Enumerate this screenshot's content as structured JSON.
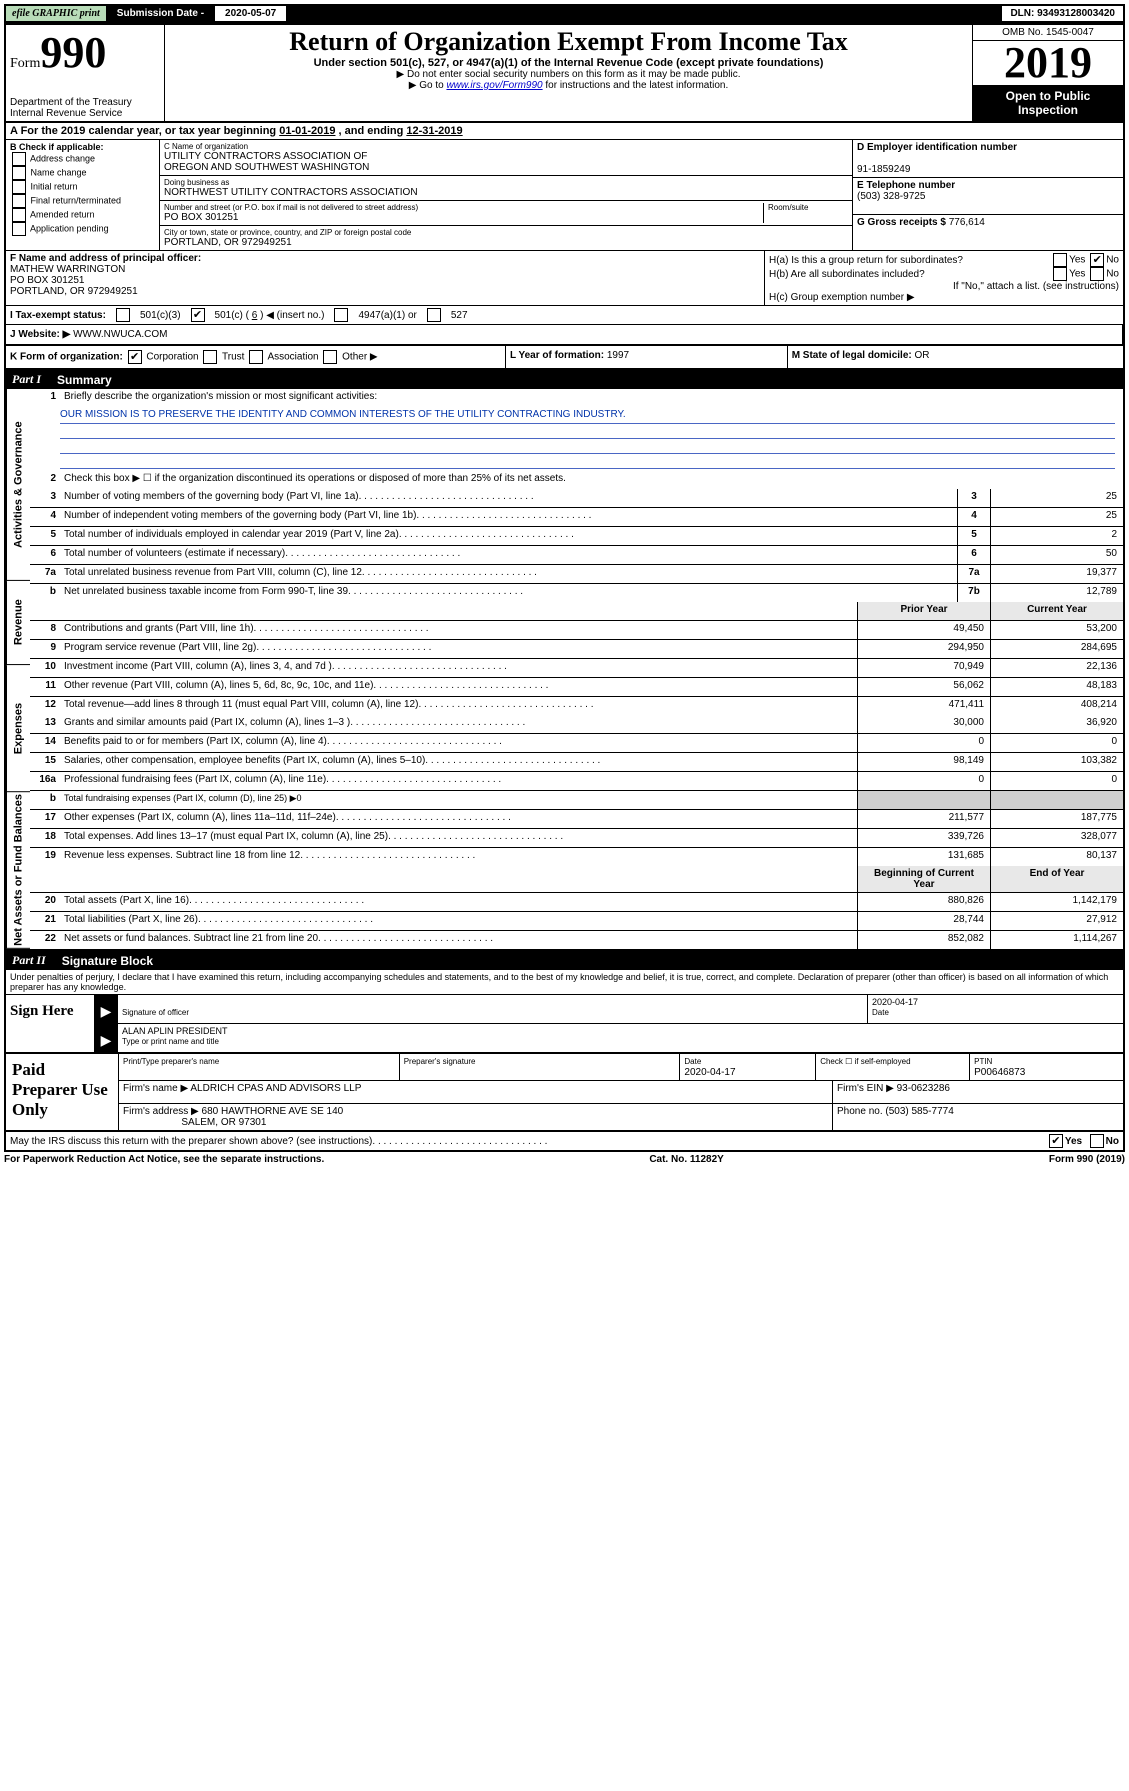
{
  "topbar": {
    "efile": "efile GRAPHIC print",
    "sub_label": "Submission Date - ",
    "sub_date": "2020-05-07",
    "dln_label": "DLN: ",
    "dln": "93493128003420"
  },
  "header": {
    "form_prefix": "Form",
    "form_number": "990",
    "dept": "Department of the Treasury",
    "irs": "Internal Revenue Service",
    "title": "Return of Organization Exempt From Income Tax",
    "subtitle": "Under section 501(c), 527, or 4947(a)(1) of the Internal Revenue Code (except private foundations)",
    "note1": "▶ Do not enter social security numbers on this form as it may be made public.",
    "note2_pre": "▶ Go to ",
    "note2_link": "www.irs.gov/Form990",
    "note2_post": " for instructions and the latest information.",
    "omb": "OMB No. 1545-0047",
    "year": "2019",
    "open": "Open to Public Inspection"
  },
  "A": {
    "text": "A For the 2019 calendar year, or tax year beginning ",
    "begin": "01-01-2019",
    "mid": " , and ending ",
    "end": "12-31-2019"
  },
  "B": {
    "label": "B Check if applicable:",
    "opts": [
      "Address change",
      "Name change",
      "Initial return",
      "Final return/terminated",
      "Amended return",
      "Application pending"
    ]
  },
  "C": {
    "name_label": "C Name of organization",
    "name1": "UTILITY CONTRACTORS ASSOCIATION OF",
    "name2": "OREGON AND SOUTHWEST WASHINGTON",
    "dba_label": "Doing business as",
    "dba": "NORTHWEST UTILITY CONTRACTORS ASSOCIATION",
    "addr_label": "Number and street (or P.O. box if mail is not delivered to street address)",
    "room_label": "Room/suite",
    "addr": "PO BOX 301251",
    "city_label": "City or town, state or province, country, and ZIP or foreign postal code",
    "city": "PORTLAND, OR  972949251"
  },
  "D": {
    "label": "D Employer identification number",
    "val": "91-1859249"
  },
  "E": {
    "label": "E Telephone number",
    "val": "(503) 328-9725"
  },
  "G": {
    "label": "G Gross receipts $ ",
    "val": "776,614"
  },
  "F": {
    "label": "F Name and address of principal officer:",
    "name": "MATHEW WARRINGTON",
    "addr1": "PO BOX 301251",
    "addr2": "PORTLAND, OR  972949251"
  },
  "H": {
    "a": "H(a)  Is this a group return for subordinates?",
    "b": "H(b)  Are all subordinates included?",
    "b2": "If \"No,\" attach a list. (see instructions)",
    "c": "H(c)  Group exemption number ▶",
    "yes": "Yes",
    "no": "No"
  },
  "I": {
    "label": "I  Tax-exempt status:",
    "c3": "501(c)(3)",
    "c_pre": "501(c) ( ",
    "c_num": "6",
    "c_post": " ) ◀ (insert no.)",
    "a4947": "4947(a)(1) or",
    "s527": "527"
  },
  "J": {
    "label": "J  Website: ▶ ",
    "val": "WWW.NWUCA.COM"
  },
  "K": {
    "label": "K Form of organization:",
    "corp": "Corporation",
    "trust": "Trust",
    "assoc": "Association",
    "other": "Other ▶"
  },
  "L": {
    "label": "L Year of formation: ",
    "val": "1997"
  },
  "M": {
    "label": "M State of legal domicile: ",
    "val": "OR"
  },
  "partI": {
    "label": "Part I",
    "title": "Summary"
  },
  "summary": {
    "l1": "Briefly describe the organization's mission or most significant activities:",
    "mission": "OUR MISSION IS TO PRESERVE THE IDENTITY AND COMMON INTERESTS OF THE UTILITY CONTRACTING INDUSTRY.",
    "l2": "Check this box ▶ ☐  if the organization discontinued its operations or disposed of more than 25% of its net assets.",
    "rows_simple": [
      {
        "n": "3",
        "d": "Number of voting members of the governing body (Part VI, line 1a)",
        "b": "3",
        "v": "25"
      },
      {
        "n": "4",
        "d": "Number of independent voting members of the governing body (Part VI, line 1b)",
        "b": "4",
        "v": "25"
      },
      {
        "n": "5",
        "d": "Total number of individuals employed in calendar year 2019 (Part V, line 2a)",
        "b": "5",
        "v": "2"
      },
      {
        "n": "6",
        "d": "Total number of volunteers (estimate if necessary)",
        "b": "6",
        "v": "50"
      },
      {
        "n": "7a",
        "d": "Total unrelated business revenue from Part VIII, column (C), line 12",
        "b": "7a",
        "v": "19,377"
      },
      {
        "n": "b",
        "d": "Net unrelated business taxable income from Form 990-T, line 39",
        "b": "7b",
        "v": "12,789"
      }
    ],
    "hdr_prior": "Prior Year",
    "hdr_curr": "Current Year",
    "revenue": [
      {
        "n": "8",
        "d": "Contributions and grants (Part VIII, line 1h)",
        "p": "49,450",
        "c": "53,200"
      },
      {
        "n": "9",
        "d": "Program service revenue (Part VIII, line 2g)",
        "p": "294,950",
        "c": "284,695"
      },
      {
        "n": "10",
        "d": "Investment income (Part VIII, column (A), lines 3, 4, and 7d )",
        "p": "70,949",
        "c": "22,136"
      },
      {
        "n": "11",
        "d": "Other revenue (Part VIII, column (A), lines 5, 6d, 8c, 9c, 10c, and 11e)",
        "p": "56,062",
        "c": "48,183"
      },
      {
        "n": "12",
        "d": "Total revenue—add lines 8 through 11 (must equal Part VIII, column (A), line 12)",
        "p": "471,411",
        "c": "408,214"
      }
    ],
    "expenses": [
      {
        "n": "13",
        "d": "Grants and similar amounts paid (Part IX, column (A), lines 1–3 )",
        "p": "30,000",
        "c": "36,920"
      },
      {
        "n": "14",
        "d": "Benefits paid to or for members (Part IX, column (A), line 4)",
        "p": "0",
        "c": "0"
      },
      {
        "n": "15",
        "d": "Salaries, other compensation, employee benefits (Part IX, column (A), lines 5–10)",
        "p": "98,149",
        "c": "103,382"
      },
      {
        "n": "16a",
        "d": "Professional fundraising fees (Part IX, column (A), line 11e)",
        "p": "0",
        "c": "0"
      },
      {
        "n": "b",
        "d": "Total fundraising expenses (Part IX, column (D), line 25) ▶0",
        "p": "",
        "c": "",
        "shade": true
      },
      {
        "n": "17",
        "d": "Other expenses (Part IX, column (A), lines 11a–11d, 11f–24e)",
        "p": "211,577",
        "c": "187,775"
      },
      {
        "n": "18",
        "d": "Total expenses. Add lines 13–17 (must equal Part IX, column (A), line 25)",
        "p": "339,726",
        "c": "328,077"
      },
      {
        "n": "19",
        "d": "Revenue less expenses. Subtract line 18 from line 12",
        "p": "131,685",
        "c": "80,137"
      }
    ],
    "hdr_begin": "Beginning of Current Year",
    "hdr_end": "End of Year",
    "assets": [
      {
        "n": "20",
        "d": "Total assets (Part X, line 16)",
        "p": "880,826",
        "c": "1,142,179"
      },
      {
        "n": "21",
        "d": "Total liabilities (Part X, line 26)",
        "p": "28,744",
        "c": "27,912"
      },
      {
        "n": "22",
        "d": "Net assets or fund balances. Subtract line 21 from line 20",
        "p": "852,082",
        "c": "1,114,267"
      }
    ],
    "tabs": {
      "gov": "Activities & Governance",
      "rev": "Revenue",
      "exp": "Expenses",
      "net": "Net Assets or Fund Balances"
    }
  },
  "partII": {
    "label": "Part II",
    "title": "Signature Block"
  },
  "sig": {
    "declare": "Under penalties of perjury, I declare that I have examined this return, including accompanying schedules and statements, and to the best of my knowledge and belief, it is true, correct, and complete. Declaration of preparer (other than officer) is based on all information of which preparer has any knowledge.",
    "sign_here": "Sign Here",
    "sig_officer": "Signature of officer",
    "date": "2020-04-17",
    "date_label": "Date",
    "name": "ALAN APLIN  PRESIDENT",
    "name_label": "Type or print name and title"
  },
  "prep": {
    "label": "Paid Preparer Use Only",
    "h_name": "Print/Type preparer's name",
    "h_sig": "Preparer's signature",
    "h_date": "Date",
    "date": "2020-04-17",
    "check": "Check ☐ if self-employed",
    "ptin_l": "PTIN",
    "ptin": "P00646873",
    "firm_l": "Firm's name    ▶ ",
    "firm": "ALDRICH CPAS AND ADVISORS LLP",
    "ein_l": "Firm's EIN ▶ ",
    "ein": "93-0623286",
    "addr_l": "Firm's address ▶ ",
    "addr1": "680 HAWTHORNE AVE SE 140",
    "addr2": "SALEM, OR  97301",
    "phone_l": "Phone no. ",
    "phone": "(503) 585-7774"
  },
  "footer": {
    "discuss": "May the IRS discuss this return with the preparer shown above? (see instructions)",
    "yes": "Yes",
    "no": "No",
    "pra": "For Paperwork Reduction Act Notice, see the separate instructions.",
    "cat": "Cat. No. 11282Y",
    "form": "Form 990 (2019)"
  }
}
